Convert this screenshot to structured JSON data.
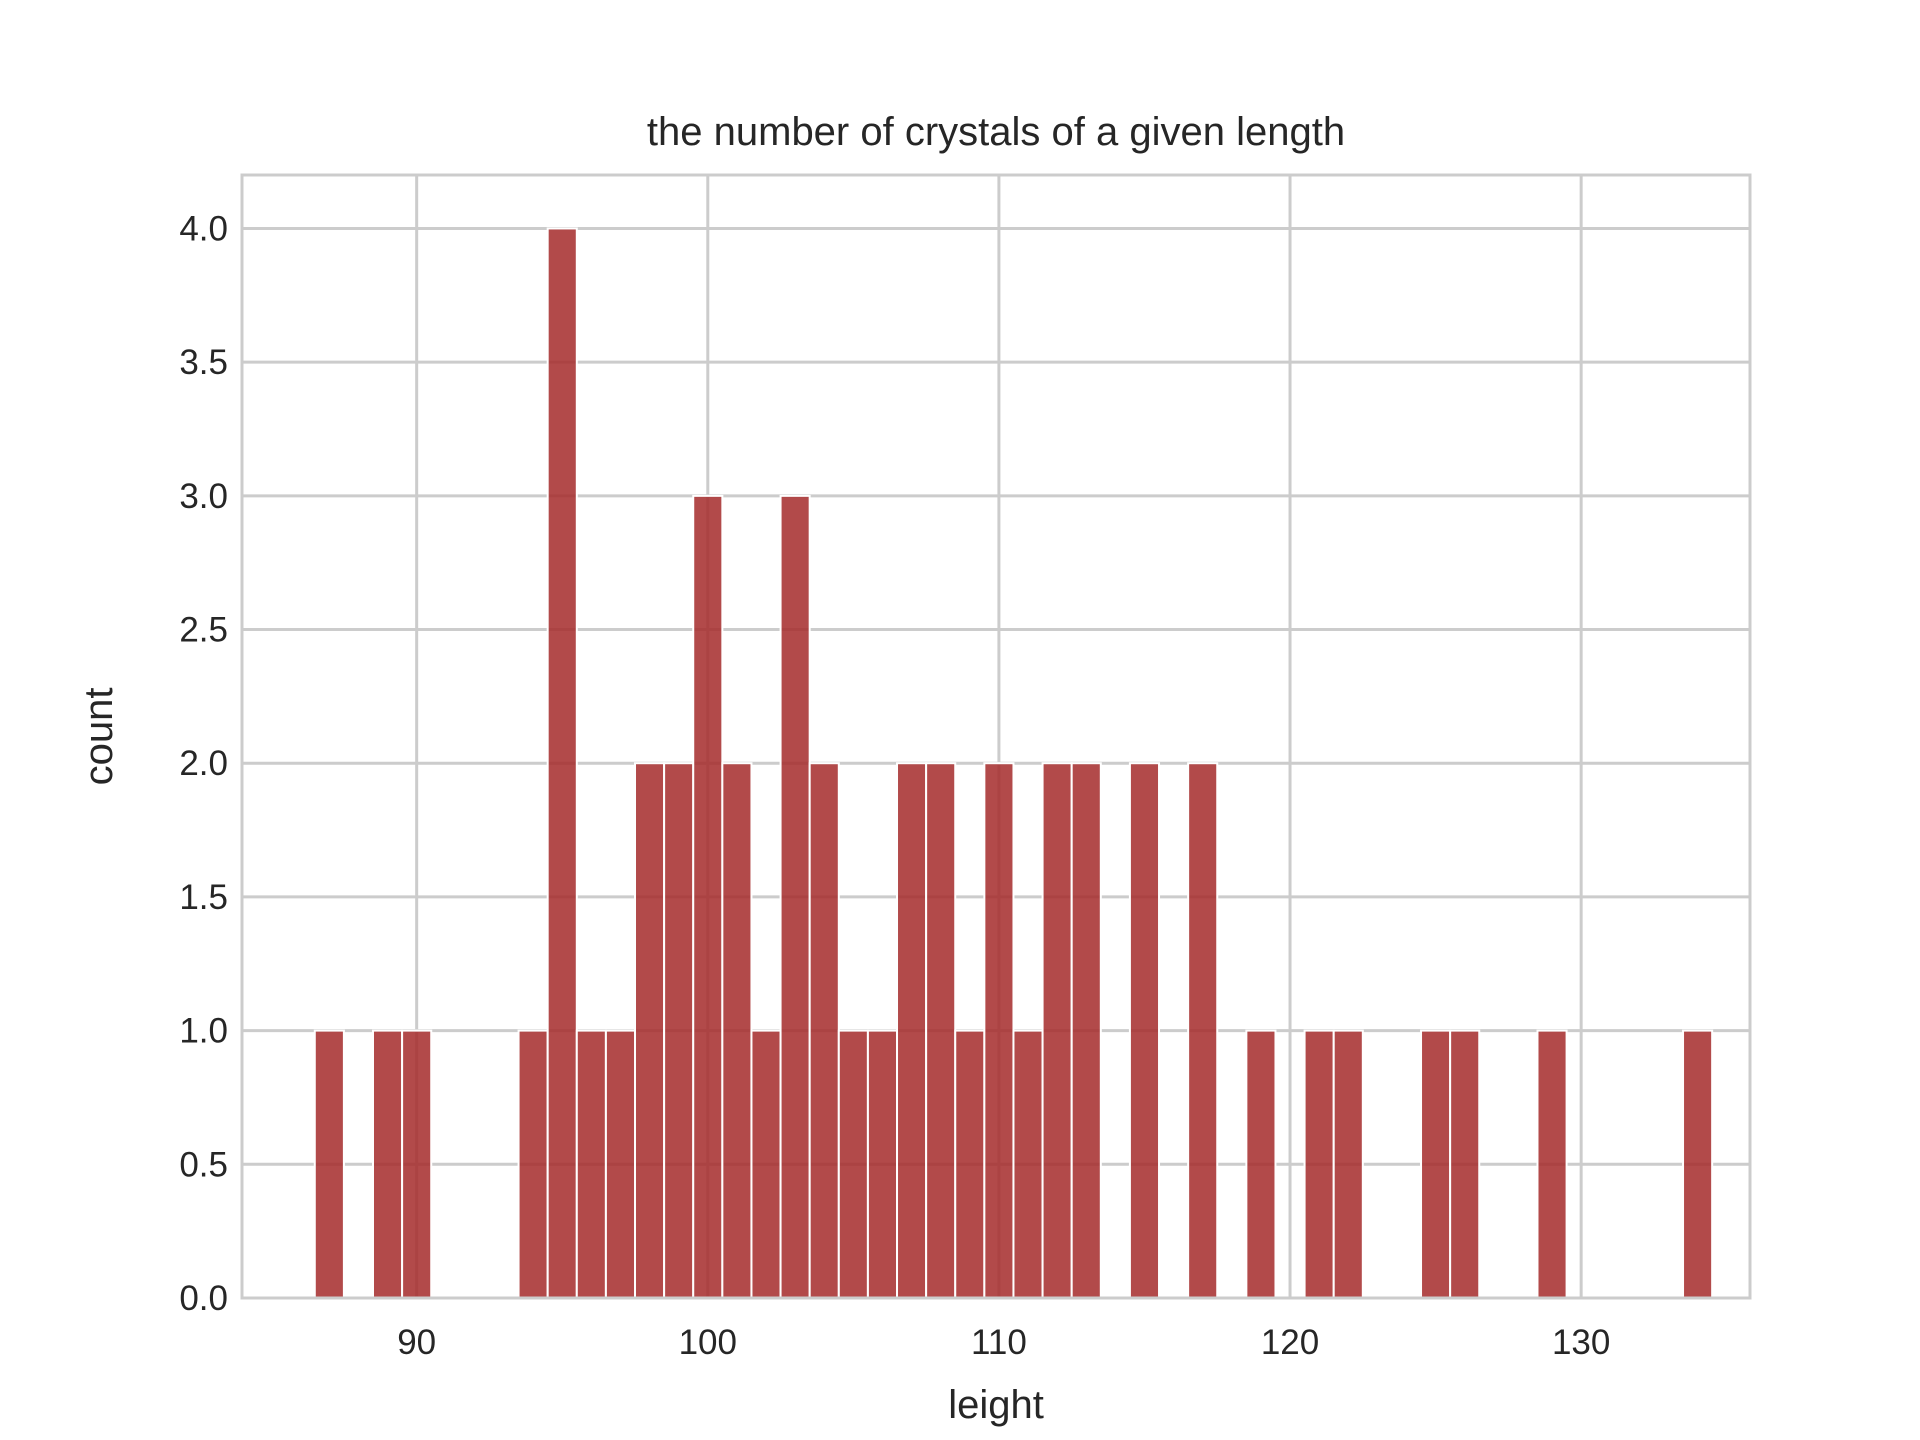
{
  "chart_data": {
    "type": "bar",
    "title": "the number of crystals of a given length",
    "xlabel": "leight",
    "ylabel": "count",
    "xlim": [
      84.0,
      135.8
    ],
    "ylim": [
      0,
      4.2
    ],
    "xticks": [
      90,
      100,
      110,
      120,
      130
    ],
    "xtick_labels": [
      "90",
      "100",
      "110",
      "120",
      "130"
    ],
    "yticks": [
      0.0,
      0.5,
      1.0,
      1.5,
      2.0,
      2.5,
      3.0,
      3.5,
      4.0
    ],
    "ytick_labels": [
      "0.0",
      "0.5",
      "1.0",
      "1.5",
      "2.0",
      "2.5",
      "3.0",
      "3.5",
      "4.0"
    ],
    "grid": true,
    "bar_color": "#a52a2a",
    "bin_start": 86.5,
    "bin_width": 1.0,
    "values": [
      1,
      0,
      1,
      1,
      0,
      0,
      0,
      1,
      4,
      1,
      1,
      2,
      2,
      3,
      2,
      1,
      3,
      2,
      1,
      1,
      2,
      2,
      1,
      2,
      1,
      2,
      2,
      0,
      2,
      0,
      2,
      0,
      1,
      0,
      1,
      1,
      0,
      0,
      1,
      1,
      0,
      0,
      1,
      0,
      0,
      0,
      0,
      1
    ]
  }
}
